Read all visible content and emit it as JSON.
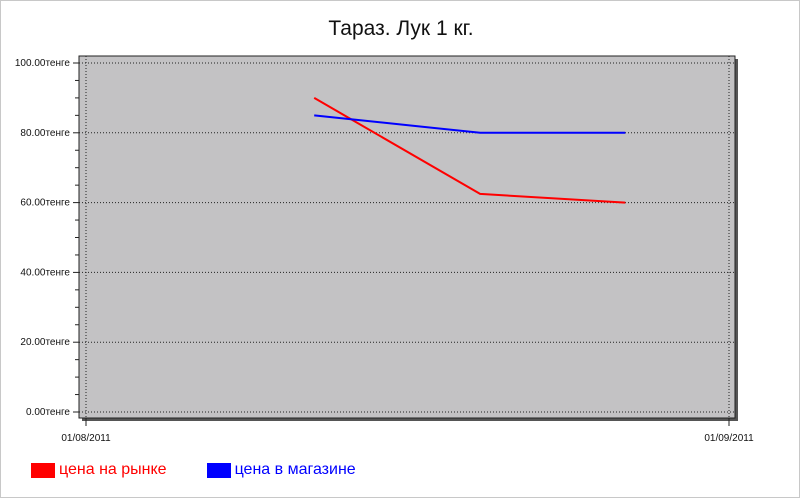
{
  "chart_data": {
    "type": "line",
    "title": "Тараз. Лук 1 кг.",
    "x_range": [
      "2011-08-01",
      "2011-09-01"
    ],
    "x_tick_labels": [
      "01/08/2011",
      "01/09/2011"
    ],
    "ylim": [
      0,
      100
    ],
    "y_tick_labels": [
      "100.00тенге",
      "80.00тенге",
      "60.00тенге",
      "40.00тенге",
      "20.00тенге",
      "0.00тенге"
    ],
    "grid": true,
    "plot_background": "#c3c2c4",
    "series": [
      {
        "name": "цена на рынке",
        "color": "#ff0000",
        "x": [
          "2011-08-12",
          "2011-08-20",
          "2011-08-27"
        ],
        "values": [
          90,
          62.5,
          60
        ]
      },
      {
        "name": "цена в магазине",
        "color": "#0000ff",
        "x": [
          "2011-08-12",
          "2011-08-20",
          "2011-08-27"
        ],
        "values": [
          85,
          80,
          80
        ]
      }
    ]
  }
}
